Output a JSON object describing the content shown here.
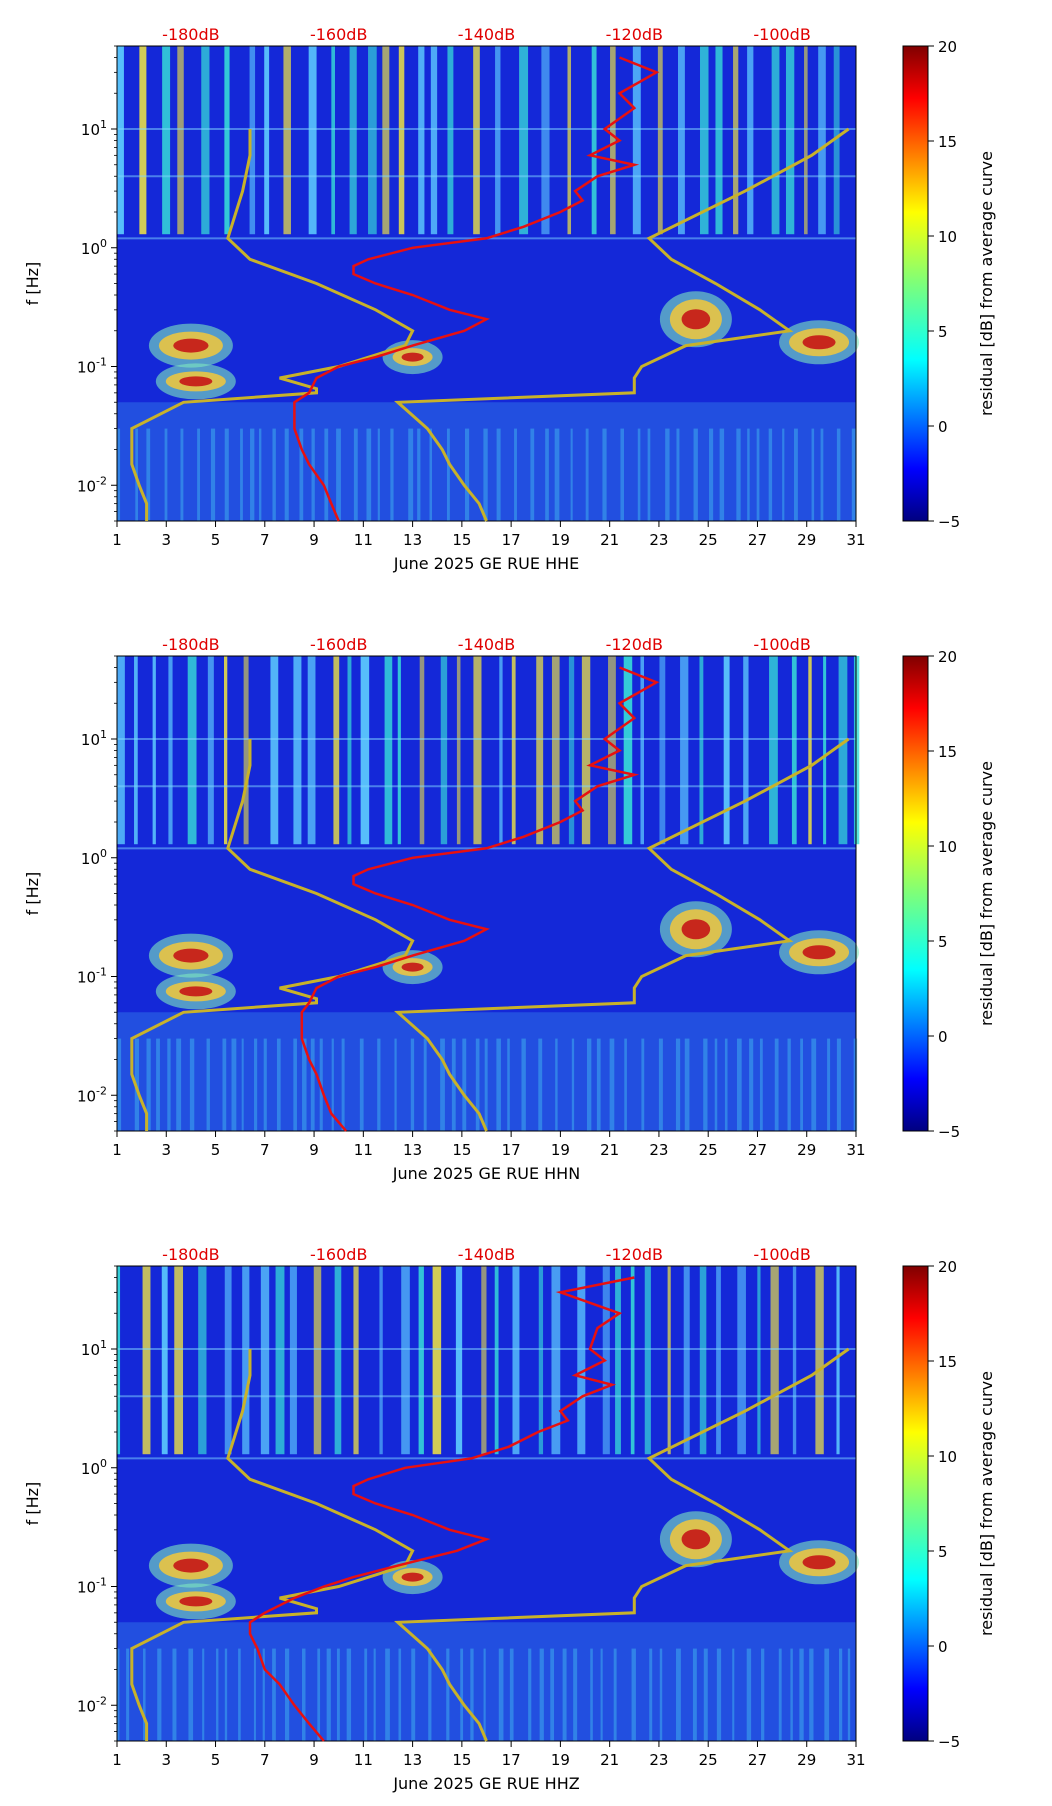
{
  "colorbar": {
    "label": "residual [dB] from average curve",
    "ticks": [
      20,
      15,
      10,
      5,
      0,
      -5
    ],
    "colormap": "jet",
    "range": [
      -5,
      20
    ]
  },
  "colors": {
    "psd_curve": "#e81010",
    "noise_model": "#c8b22a",
    "db_labels": "#e00000"
  },
  "chart_data": [
    {
      "type": "heatmap",
      "title": "",
      "xlabel": "June 2025 GE RUE  HHE",
      "ylabel": "f [Hz]",
      "x_ticks": [
        "1",
        "3",
        "5",
        "7",
        "9",
        "11",
        "13",
        "15",
        "17",
        "19",
        "21",
        "23",
        "25",
        "27",
        "29",
        "31"
      ],
      "xlim": [
        1,
        31
      ],
      "y_ticks": [
        "10^-2",
        "10^-1",
        "10^0",
        "10^1"
      ],
      "yscale": "log",
      "ylim": [
        0.005,
        50
      ],
      "db_axis_labels": [
        "-180dB",
        "-160dB",
        "-140dB",
        "-120dB",
        "-100dB"
      ],
      "db_scale_range": [
        -190,
        -90
      ],
      "psd_curve": {
        "f": [
          0.005,
          0.007,
          0.01,
          0.015,
          0.02,
          0.03,
          0.04,
          0.05,
          0.06,
          0.08,
          0.1,
          0.12,
          0.15,
          0.2,
          0.25,
          0.3,
          0.4,
          0.5,
          0.6,
          0.7,
          0.8,
          1.0,
          1.2,
          1.5,
          2.0,
          2.5,
          3.0,
          4.0,
          5.0,
          6.0,
          8.0,
          10.0,
          15.0,
          20.0,
          30.0,
          40.0
        ],
        "db": [
          -160,
          -161,
          -162,
          -164,
          -165,
          -166,
          -166,
          -166,
          -164,
          -163,
          -160,
          -155,
          -150,
          -143,
          -140,
          -145,
          -150,
          -155,
          -158,
          -158,
          -156,
          -150,
          -140,
          -135,
          -130,
          -127,
          -128,
          -125,
          -120,
          -126,
          -122,
          -124,
          -120,
          -122,
          -117,
          -122
        ]
      }
    },
    {
      "type": "heatmap",
      "title": "",
      "xlabel": "June 2025 GE RUE  HHN",
      "ylabel": "f [Hz]",
      "x_ticks": [
        "1",
        "3",
        "5",
        "7",
        "9",
        "11",
        "13",
        "15",
        "17",
        "19",
        "21",
        "23",
        "25",
        "27",
        "29",
        "31"
      ],
      "xlim": [
        1,
        31
      ],
      "y_ticks": [
        "10^-2",
        "10^-1",
        "10^0",
        "10^1"
      ],
      "yscale": "log",
      "ylim": [
        0.005,
        50
      ],
      "db_axis_labels": [
        "-180dB",
        "-160dB",
        "-140dB",
        "-120dB",
        "-100dB"
      ],
      "db_scale_range": [
        -190,
        -90
      ],
      "psd_curve": {
        "f": [
          0.005,
          0.007,
          0.01,
          0.015,
          0.02,
          0.03,
          0.04,
          0.05,
          0.06,
          0.08,
          0.1,
          0.12,
          0.15,
          0.2,
          0.25,
          0.3,
          0.4,
          0.5,
          0.6,
          0.7,
          0.8,
          1.0,
          1.2,
          1.5,
          2.0,
          2.5,
          3.0,
          4.0,
          5.0,
          6.0,
          8.0,
          10.0,
          15.0,
          20.0,
          30.0,
          40.0
        ],
        "db": [
          -159,
          -161,
          -162,
          -163,
          -164,
          -165,
          -165,
          -165,
          -164,
          -163,
          -160,
          -155,
          -150,
          -143,
          -140,
          -145,
          -150,
          -155,
          -158,
          -158,
          -156,
          -150,
          -140,
          -135,
          -130,
          -127,
          -128,
          -125,
          -120,
          -126,
          -122,
          -124,
          -120,
          -122,
          -117,
          -122
        ]
      }
    },
    {
      "type": "heatmap",
      "title": "",
      "xlabel": "June 2025 GE RUE  HHZ",
      "ylabel": "f [Hz]",
      "x_ticks": [
        "1",
        "3",
        "5",
        "7",
        "9",
        "11",
        "13",
        "15",
        "17",
        "19",
        "21",
        "23",
        "25",
        "27",
        "29",
        "31"
      ],
      "xlim": [
        1,
        31
      ],
      "y_ticks": [
        "10^-2",
        "10^-1",
        "10^0",
        "10^1"
      ],
      "yscale": "log",
      "ylim": [
        0.005,
        50
      ],
      "db_axis_labels": [
        "-180dB",
        "-160dB",
        "-140dB",
        "-120dB",
        "-100dB"
      ],
      "db_scale_range": [
        -190,
        -90
      ],
      "psd_curve": {
        "f": [
          0.005,
          0.007,
          0.01,
          0.015,
          0.02,
          0.03,
          0.04,
          0.05,
          0.06,
          0.08,
          0.1,
          0.12,
          0.15,
          0.2,
          0.25,
          0.3,
          0.4,
          0.5,
          0.6,
          0.7,
          0.8,
          1.0,
          1.2,
          1.5,
          2.0,
          2.5,
          3.0,
          4.0,
          5.0,
          6.0,
          8.0,
          10.0,
          15.0,
          20.0,
          30.0,
          40.0
        ],
        "db": [
          -162,
          -164,
          -166,
          -168,
          -170,
          -171,
          -172,
          -172,
          -170,
          -166,
          -162,
          -158,
          -152,
          -144,
          -140,
          -145,
          -150,
          -155,
          -158,
          -158,
          -156,
          -151,
          -142,
          -137,
          -133,
          -129,
          -130,
          -127,
          -123,
          -128,
          -124,
          -126,
          -125,
          -122,
          -130,
          -120
        ]
      }
    }
  ],
  "noise_model": {
    "f": [
      0.005,
      0.007,
      0.01,
      0.015,
      0.02,
      0.03,
      0.05,
      0.06,
      0.065,
      0.08,
      0.1,
      0.15,
      0.2,
      0.3,
      0.5,
      0.8,
      1.2,
      3.0,
      6.0,
      10.0
    ],
    "low_db": [
      -186,
      -186,
      -187,
      -188,
      -188,
      -188,
      -181,
      -163,
      -163,
      -168,
      -160,
      -151,
      -150,
      -155,
      -163,
      -172,
      -175,
      -173,
      -172,
      -172
    ],
    "high_db": [
      -140,
      -141,
      -143,
      -145,
      -146,
      -148,
      -152,
      -120,
      -120,
      -120,
      -119,
      -113,
      -99,
      -103,
      -109,
      -115,
      -118,
      -105,
      -96,
      -91
    ]
  }
}
